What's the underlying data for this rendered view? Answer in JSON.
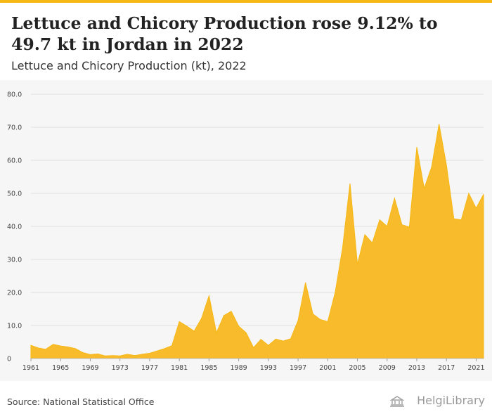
{
  "header": {
    "title": "Lettuce and Chicory Production rose 9.12% to 49.7 kt in Jordan in 2022",
    "subtitle": "Lettuce and Chicory Production (kt), 2022"
  },
  "footer": {
    "source": "Source: National Statistical Office",
    "logo_text": "HelgiLibrary"
  },
  "colors": {
    "accent": "#f6b815",
    "area_fill": "#f8bb2b",
    "topbar": "#f6b815",
    "chart_bg": "#f6f6f6",
    "grid": "#e0e0e0"
  },
  "logo_icon": "library-building-icon",
  "chart_data": {
    "type": "area",
    "title": "Lettuce and Chicory Production (kt), 2022",
    "xlabel": "",
    "ylabel": "",
    "ylim": [
      0,
      80
    ],
    "yticks": [
      "0",
      "10.0",
      "20.0",
      "30.0",
      "40.0",
      "50.0",
      "60.0",
      "70.0",
      "80.0"
    ],
    "xticks": [
      "1961",
      "1965",
      "1969",
      "1973",
      "1977",
      "1981",
      "1985",
      "1989",
      "1993",
      "1997",
      "2001",
      "2005",
      "2009",
      "2013",
      "2017",
      "2021"
    ],
    "grid": true,
    "legend": "none",
    "x": [
      1961,
      1962,
      1963,
      1964,
      1965,
      1966,
      1967,
      1968,
      1969,
      1970,
      1971,
      1972,
      1973,
      1974,
      1975,
      1976,
      1977,
      1978,
      1979,
      1980,
      1981,
      1982,
      1983,
      1984,
      1985,
      1986,
      1987,
      1988,
      1989,
      1990,
      1991,
      1992,
      1993,
      1994,
      1995,
      1996,
      1997,
      1998,
      1999,
      2000,
      2001,
      2002,
      2003,
      2004,
      2005,
      2006,
      2007,
      2008,
      2009,
      2010,
      2011,
      2012,
      2013,
      2014,
      2015,
      2016,
      2017,
      2018,
      2019,
      2020,
      2021,
      2022
    ],
    "series": [
      {
        "values": [
          4.0,
          3.2,
          2.8,
          4.3,
          3.8,
          3.5,
          3.0,
          1.8,
          1.2,
          1.4,
          0.8,
          0.9,
          0.8,
          1.3,
          0.9,
          1.3,
          1.6,
          2.3,
          3.0,
          3.9,
          11.2,
          9.8,
          8.3,
          12.2,
          19.0,
          7.8,
          13.0,
          14.3,
          9.8,
          7.8,
          3.3,
          5.8,
          4.0,
          5.9,
          5.3,
          6.0,
          11.5,
          23.0,
          13.5,
          11.8,
          11.2,
          20.0,
          33.5,
          53.0,
          28.5,
          37.5,
          35.0,
          42.0,
          40.0,
          48.5,
          40.5,
          39.8,
          64.0,
          51.5,
          58.0,
          71.0,
          58.5,
          42.3,
          42.0,
          50.0,
          45.5,
          49.7
        ]
      }
    ]
  }
}
